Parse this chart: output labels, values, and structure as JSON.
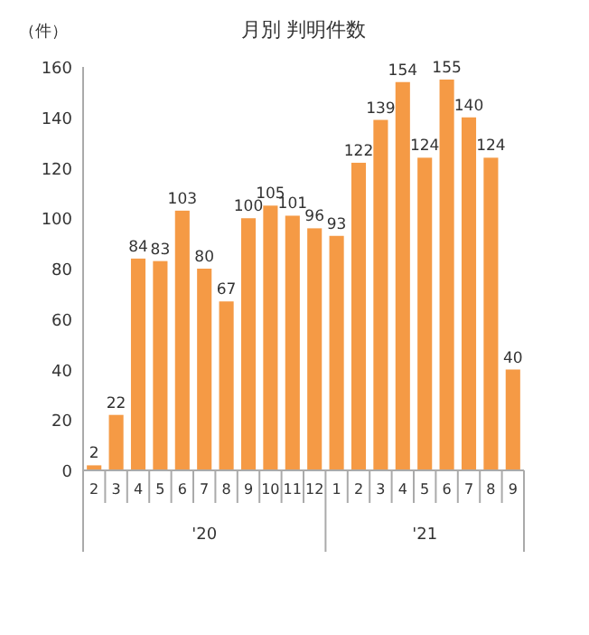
{
  "chart_data": {
    "type": "bar",
    "title": "月別 判明件数",
    "ylabel": "（件）",
    "categories": [
      "2",
      "3",
      "4",
      "5",
      "6",
      "7",
      "8",
      "9",
      "10",
      "11",
      "12",
      "1",
      "2",
      "3",
      "4",
      "5",
      "6",
      "7",
      "8",
      "9"
    ],
    "values": [
      2,
      22,
      84,
      83,
      103,
      80,
      67,
      100,
      105,
      101,
      96,
      93,
      122,
      139,
      154,
      124,
      155,
      140,
      124,
      40
    ],
    "color": "#f59a45",
    "ylim": [
      0,
      160
    ],
    "yticks": [
      0,
      20,
      40,
      60,
      80,
      100,
      120,
      140,
      160
    ],
    "data_labels": true,
    "annotations": [
      "'20",
      "'21"
    ]
  }
}
